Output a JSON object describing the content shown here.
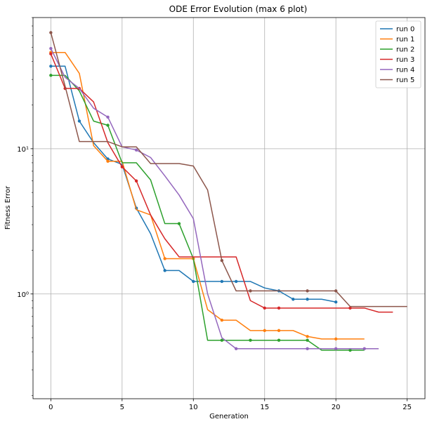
{
  "chart_data": {
    "type": "line",
    "title": "ODE Error Evolution (max 6 plot)",
    "xlabel": "Generation",
    "ylabel": "Fitness Error",
    "xlim": [
      -1.25,
      26.25
    ],
    "ylim": [
      0.19,
      80
    ],
    "yscale": "log",
    "xticks": [
      0,
      5,
      10,
      15,
      20,
      25
    ],
    "xtick_labels": [
      "0",
      "5",
      "10",
      "15",
      "20",
      "25"
    ],
    "yticks": [
      1,
      10
    ],
    "ytick_labels": [
      "10⁰",
      "10¹"
    ],
    "grid": true,
    "legend_position": "top-right",
    "series": [
      {
        "name": "run 0",
        "color": "#1f77b4",
        "x": [
          0,
          1,
          2,
          3,
          4,
          5,
          6,
          7,
          8,
          9,
          10,
          11,
          12,
          13,
          14,
          15,
          16,
          17,
          18,
          19,
          20
        ],
        "y": [
          37,
          37,
          15.5,
          11,
          8.5,
          7.8,
          3.9,
          2.6,
          1.45,
          1.45,
          1.22,
          1.22,
          1.22,
          1.22,
          1.22,
          1.1,
          1.05,
          0.92,
          0.92,
          0.92,
          0.88
        ],
        "marker_x": [
          0,
          2,
          4,
          6,
          8,
          10,
          12,
          13,
          16,
          17,
          18,
          20
        ]
      },
      {
        "name": "run 1",
        "color": "#ff7f0e",
        "x": [
          0,
          1,
          2,
          3,
          4,
          5,
          6,
          7,
          8,
          9,
          10,
          11,
          12,
          13,
          14,
          15,
          16,
          17,
          18,
          19,
          20,
          21,
          22
        ],
        "y": [
          46,
          46,
          33,
          10.5,
          8.2,
          8.2,
          3.8,
          3.5,
          1.75,
          1.75,
          1.75,
          0.78,
          0.66,
          0.66,
          0.56,
          0.56,
          0.56,
          0.56,
          0.51,
          0.49,
          0.49,
          0.49,
          0.49
        ],
        "marker_x": [
          0,
          4,
          8,
          10,
          12,
          15,
          16,
          18,
          20
        ]
      },
      {
        "name": "run 2",
        "color": "#2ca02c",
        "x": [
          0,
          1,
          2,
          3,
          4,
          5,
          6,
          7,
          8,
          9,
          10,
          11,
          12,
          13,
          14,
          15,
          16,
          17,
          18,
          19,
          20,
          21,
          22
        ],
        "y": [
          32,
          32,
          25,
          15.5,
          14.5,
          8,
          8,
          6.1,
          3.05,
          3.05,
          1.75,
          0.48,
          0.48,
          0.48,
          0.48,
          0.48,
          0.48,
          0.48,
          0.48,
          0.41,
          0.41,
          0.41,
          0.41
        ],
        "marker_x": [
          0,
          4,
          9,
          12,
          14,
          16,
          18,
          21
        ]
      },
      {
        "name": "run 3",
        "color": "#d62728",
        "x": [
          0,
          1,
          2,
          3,
          4,
          5,
          6,
          7,
          8,
          9,
          10,
          11,
          12,
          13,
          14,
          15,
          16,
          17,
          18,
          19,
          20,
          21,
          22,
          23,
          24
        ],
        "y": [
          45,
          26,
          26,
          21,
          11,
          7.5,
          6,
          3.5,
          2.4,
          1.8,
          1.8,
          1.8,
          1.8,
          1.8,
          0.9,
          0.8,
          0.8,
          0.8,
          0.8,
          0.8,
          0.8,
          0.8,
          0.8,
          0.75,
          0.75
        ],
        "marker_x": [
          0,
          1,
          2,
          5,
          6,
          15,
          16,
          21
        ]
      },
      {
        "name": "run 4",
        "color": "#9467bd",
        "x": [
          0,
          1,
          2,
          3,
          4,
          5,
          6,
          7,
          8,
          9,
          10,
          11,
          12,
          13,
          14,
          15,
          16,
          17,
          18,
          19,
          20,
          21,
          22,
          23
        ],
        "y": [
          49,
          31,
          26,
          19,
          16.5,
          10.3,
          9.8,
          8.7,
          6.5,
          4.8,
          3.3,
          1.0,
          0.5,
          0.42,
          0.42,
          0.42,
          0.42,
          0.42,
          0.42,
          0.42,
          0.42,
          0.42,
          0.42,
          0.42
        ],
        "marker_x": [
          0,
          4,
          6,
          13,
          18,
          20,
          22
        ]
      },
      {
        "name": "run 5",
        "color": "#8c564b",
        "x": [
          0,
          1,
          2,
          3,
          4,
          5,
          6,
          7,
          8,
          9,
          10,
          11,
          12,
          13,
          14,
          15,
          16,
          17,
          18,
          19,
          20,
          21,
          22,
          23,
          24,
          25
        ],
        "y": [
          63,
          27,
          11.2,
          11.2,
          11.2,
          10.3,
          10.3,
          7.9,
          7.9,
          7.9,
          7.6,
          5.2,
          1.7,
          1.05,
          1.05,
          1.05,
          1.05,
          1.05,
          1.05,
          1.05,
          1.05,
          0.82,
          0.82,
          0.82,
          0.82,
          0.82
        ],
        "marker_x": [
          0,
          12,
          14,
          18,
          20
        ]
      }
    ]
  }
}
